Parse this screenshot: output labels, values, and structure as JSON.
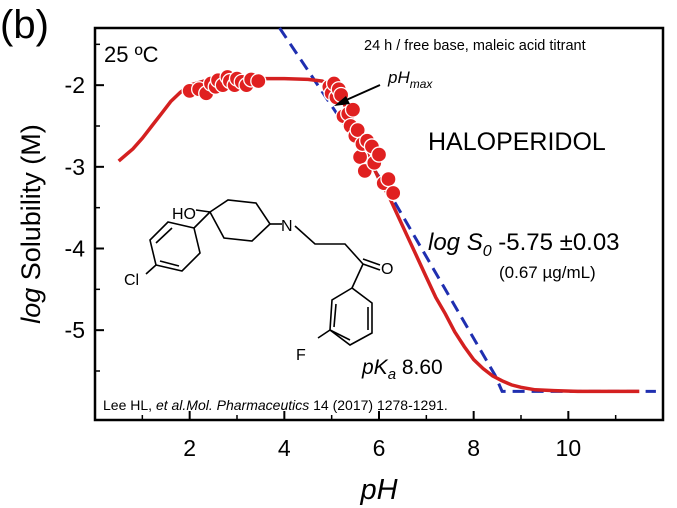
{
  "panel_label": "(b)",
  "temperature_label": "25 ºC",
  "condition_label": "24 h / free base, maleic acid titrant",
  "compound_name": "HALOPERIDOL",
  "phmax_label": "pH",
  "phmax_sub": "max",
  "logs0_prefix": "log S",
  "logs0_sub": "0",
  "logs0_value": " -5.75 ±0.03",
  "logs0_conc": "(0.67 µg/mL)",
  "pka_prefix": "pK",
  "pka_sub": "a",
  "pka_value": " 8.60",
  "citation": {
    "authors": "Lee HL, ",
    "etal": "et al.",
    "journal": "Mol. Pharmaceutics",
    "rest": " 14 (2017) 1278-1291."
  },
  "structure_labels": {
    "ho": "HO",
    "n": "N",
    "o": "O",
    "cl": "Cl",
    "f": "F"
  },
  "colors": {
    "points": "#e02020",
    "fit": "#d42020",
    "asymptote": "#1f2fb0",
    "point_edge": "#ffffff"
  },
  "chart_data": {
    "type": "scatter",
    "xlabel": "pH",
    "ylabel_italic": "log",
    "ylabel_rest": " Solubility (M)",
    "xlim": [
      0,
      12
    ],
    "ylim": [
      -6.1,
      -1.3
    ],
    "xticks": [
      2,
      4,
      6,
      8,
      10
    ],
    "yticks": [
      -2,
      -3,
      -4,
      -5
    ],
    "series": [
      {
        "kind": "points",
        "points": [
          [
            2.0,
            -2.07
          ],
          [
            2.2,
            -2.05
          ],
          [
            2.35,
            -2.1
          ],
          [
            2.45,
            -1.98
          ],
          [
            2.55,
            -2.02
          ],
          [
            2.6,
            -1.94
          ],
          [
            2.7,
            -2.0
          ],
          [
            2.8,
            -1.9
          ],
          [
            2.85,
            -1.95
          ],
          [
            2.95,
            -2.0
          ],
          [
            3.0,
            -1.92
          ],
          [
            3.1,
            -1.96
          ],
          [
            3.2,
            -2.0
          ],
          [
            3.3,
            -1.93
          ],
          [
            3.45,
            -1.95
          ],
          [
            4.95,
            -2.02
          ],
          [
            5.0,
            -2.1
          ],
          [
            5.05,
            -1.98
          ],
          [
            5.1,
            -2.15
          ],
          [
            5.15,
            -2.05
          ],
          [
            5.2,
            -2.12
          ],
          [
            5.25,
            -2.38
          ],
          [
            5.35,
            -2.35
          ],
          [
            5.4,
            -2.5
          ],
          [
            5.45,
            -2.3
          ],
          [
            5.5,
            -2.62
          ],
          [
            5.55,
            -2.55
          ],
          [
            5.6,
            -2.88
          ],
          [
            5.65,
            -2.72
          ],
          [
            5.7,
            -3.05
          ],
          [
            5.75,
            -2.68
          ],
          [
            5.85,
            -2.75
          ],
          [
            5.9,
            -2.95
          ],
          [
            6.0,
            -2.85
          ],
          [
            6.1,
            -3.2
          ],
          [
            6.2,
            -3.15
          ],
          [
            6.3,
            -3.32
          ]
        ]
      },
      {
        "kind": "fit",
        "points": [
          [
            0.5,
            -2.93
          ],
          [
            0.8,
            -2.78
          ],
          [
            1.0,
            -2.65
          ],
          [
            1.2,
            -2.5
          ],
          [
            1.4,
            -2.35
          ],
          [
            1.6,
            -2.2
          ],
          [
            1.8,
            -2.09
          ],
          [
            2.0,
            -2.0
          ],
          [
            2.3,
            -1.95
          ],
          [
            2.6,
            -1.93
          ],
          [
            3.0,
            -1.92
          ],
          [
            3.5,
            -1.92
          ],
          [
            4.0,
            -1.92
          ],
          [
            4.5,
            -1.93
          ],
          [
            4.8,
            -1.95
          ],
          [
            5.0,
            -2.0
          ],
          [
            5.2,
            -2.15
          ],
          [
            5.4,
            -2.4
          ],
          [
            5.6,
            -2.66
          ],
          [
            5.8,
            -2.9
          ],
          [
            6.0,
            -3.15
          ],
          [
            6.2,
            -3.35
          ],
          [
            6.4,
            -3.6
          ],
          [
            6.6,
            -3.85
          ],
          [
            6.8,
            -4.1
          ],
          [
            7.0,
            -4.35
          ],
          [
            7.2,
            -4.6
          ],
          [
            7.4,
            -4.8
          ],
          [
            7.6,
            -5.02
          ],
          [
            7.8,
            -5.2
          ],
          [
            8.0,
            -5.36
          ],
          [
            8.2,
            -5.47
          ],
          [
            8.4,
            -5.56
          ],
          [
            8.6,
            -5.62
          ],
          [
            8.8,
            -5.67
          ],
          [
            9.0,
            -5.7
          ],
          [
            9.3,
            -5.73
          ],
          [
            9.7,
            -5.74
          ],
          [
            10.2,
            -5.75
          ],
          [
            11.5,
            -5.75
          ]
        ]
      },
      {
        "kind": "asymptote",
        "points": [
          [
            3.9,
            -1.3
          ],
          [
            6.15,
            -3.25
          ],
          [
            8.45,
            -5.55
          ],
          [
            8.6,
            -5.75
          ],
          [
            11.85,
            -5.75
          ]
        ]
      }
    ]
  }
}
